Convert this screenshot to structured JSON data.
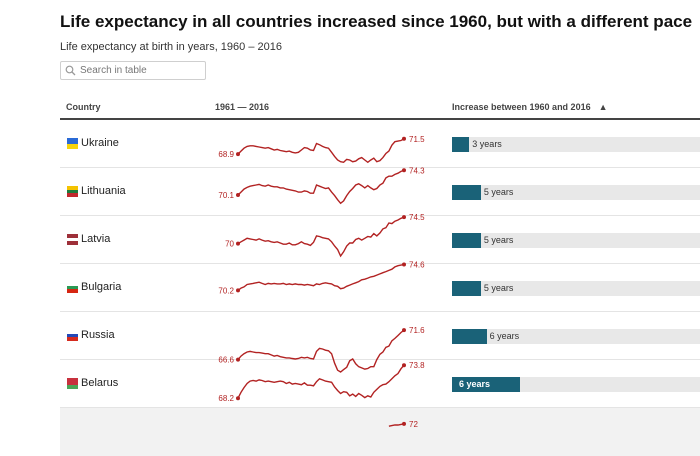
{
  "page": {
    "title": "Life expectancy in all countries increased since 1960, but with a different pace",
    "subtitle": "Life expectancy at birth in years, 1960 – 2016"
  },
  "search": {
    "placeholder": "Search in table",
    "value": ""
  },
  "table": {
    "headers": {
      "country": "Country",
      "trend": "1961 — 2016",
      "increase": "Increase between 1960 and 2016"
    },
    "sort": {
      "column": "increase",
      "direction": "ascending"
    },
    "rows": [
      {
        "country": "Ukraine",
        "flag": [
          "#2a6ad6",
          "#f5d40e"
        ],
        "start_label": "68.9",
        "end_label": "71.5",
        "series": [
          68.9,
          69.4,
          69.9,
          70.2,
          70.3,
          70.3,
          70.2,
          70.1,
          70.0,
          69.9,
          70.0,
          69.8,
          69.6,
          69.7,
          69.5,
          69.4,
          69.3,
          69.4,
          69.2,
          69.1,
          69.2,
          69.6,
          70.0,
          69.9,
          69.6,
          69.5,
          70.7,
          70.5,
          70.2,
          70.0,
          69.9,
          69.2,
          68.5,
          67.9,
          67.6,
          67.5,
          68.0,
          67.9,
          67.6,
          67.7,
          68.1,
          68.3,
          67.9,
          67.5,
          67.9,
          68.2,
          67.6,
          67.8,
          68.3,
          69.0,
          69.4,
          70.4,
          71.0,
          71.1,
          71.2,
          71.5
        ],
        "increase_years": 3,
        "increase_label": "3 years",
        "label_inside": false
      },
      {
        "country": "Lithuania",
        "flag": [
          "#f4c300",
          "#1e7a3c",
          "#c1272d"
        ],
        "start_label": "70.1",
        "end_label": "74.3",
        "series": [
          70.1,
          70.6,
          71.1,
          71.4,
          71.6,
          71.7,
          71.8,
          71.9,
          71.7,
          71.6,
          71.8,
          71.6,
          71.5,
          71.5,
          71.3,
          71.3,
          71.1,
          71.0,
          70.9,
          70.8,
          70.6,
          70.6,
          70.8,
          70.7,
          70.4,
          70.4,
          71.8,
          71.6,
          71.4,
          71.2,
          71.3,
          70.6,
          70.0,
          69.3,
          68.7,
          69.1,
          70.0,
          70.7,
          71.2,
          71.8,
          72.0,
          71.7,
          71.3,
          71.7,
          71.3,
          71.0,
          71.2,
          71.8,
          72.1,
          73.0,
          73.3,
          73.3,
          73.6,
          73.8,
          74.1,
          74.3
        ],
        "increase_years": 5,
        "increase_label": "5 years",
        "label_inside": false
      },
      {
        "country": "Latvia",
        "flag": [
          "#9e3039",
          "#ffffff",
          "#9e3039"
        ],
        "start_label": "70",
        "end_label": "74.5",
        "series": [
          70.0,
          70.3,
          70.6,
          70.9,
          70.8,
          70.7,
          70.6,
          70.8,
          70.6,
          70.4,
          70.5,
          70.3,
          70.2,
          70.3,
          70.1,
          69.9,
          69.9,
          70.1,
          69.8,
          69.8,
          70.0,
          70.3,
          70.0,
          69.9,
          69.7,
          70.2,
          71.3,
          71.2,
          71.0,
          70.9,
          70.8,
          70.3,
          69.6,
          69.0,
          67.9,
          68.6,
          69.6,
          70.1,
          70.1,
          70.7,
          70.9,
          70.6,
          70.9,
          71.2,
          71.1,
          71.7,
          71.3,
          71.8,
          72.5,
          72.7,
          73.5,
          73.4,
          73.8,
          74.0,
          74.3,
          74.5
        ],
        "increase_years": 5,
        "increase_label": "5 years",
        "label_inside": false
      },
      {
        "country": "Bulgaria",
        "flag": [
          "#ffffff",
          "#2a9a54",
          "#d62612"
        ],
        "start_label": "70.2",
        "end_label": "74.6",
        "series": [
          70.2,
          70.6,
          70.8,
          71.2,
          71.3,
          71.4,
          71.5,
          71.6,
          71.4,
          71.2,
          71.4,
          71.3,
          71.4,
          71.3,
          71.3,
          71.4,
          71.2,
          71.3,
          71.2,
          71.3,
          71.2,
          71.2,
          71.1,
          71.2,
          71.1,
          71.0,
          71.3,
          71.2,
          71.4,
          71.5,
          71.4,
          71.3,
          71.0,
          70.9,
          70.5,
          70.6,
          70.9,
          71.1,
          71.3,
          71.5,
          71.7,
          72.0,
          72.1,
          72.3,
          72.5,
          72.6,
          72.8,
          73.0,
          73.2,
          73.4,
          73.6,
          73.8,
          74.2,
          74.4,
          74.5,
          74.6
        ],
        "increase_years": 5,
        "increase_label": "5 years",
        "label_inside": false
      },
      {
        "country": "Russia",
        "flag": [
          "#ffffff",
          "#2348b7",
          "#d52b1e"
        ],
        "start_label": "66.6",
        "end_label": "71.6",
        "series": [
          66.6,
          67.2,
          67.6,
          67.9,
          68.0,
          67.9,
          67.8,
          67.8,
          67.7,
          67.6,
          67.6,
          67.4,
          67.2,
          67.3,
          67.1,
          67.0,
          66.9,
          66.9,
          66.8,
          66.7,
          66.8,
          67.0,
          66.9,
          67.0,
          66.8,
          66.7,
          68.0,
          68.5,
          68.4,
          68.2,
          68.1,
          67.6,
          66.0,
          64.8,
          64.5,
          64.9,
          65.3,
          66.4,
          66.7,
          65.9,
          65.4,
          65.2,
          65.0,
          65.1,
          65.4,
          65.4,
          66.6,
          67.5,
          67.9,
          68.7,
          68.9,
          69.8,
          70.2,
          70.7,
          71.2,
          71.6
        ],
        "increase_years": 6,
        "increase_label": "6 years",
        "label_inside": false
      },
      {
        "country": "Belarus",
        "flag": [
          "#c8313e",
          "#c8313e",
          "#4aa657"
        ],
        "start_label": "68.2",
        "end_label": "73.8",
        "series": [
          68.2,
          69.2,
          70.0,
          70.7,
          71.1,
          71.2,
          71.1,
          71.3,
          71.2,
          71.0,
          71.1,
          71.0,
          70.9,
          71.0,
          71.1,
          71.0,
          70.7,
          70.9,
          70.6,
          70.7,
          70.6,
          70.5,
          70.8,
          70.4,
          70.4,
          70.3,
          71.0,
          71.5,
          71.3,
          71.1,
          71.0,
          70.9,
          70.1,
          69.5,
          69.0,
          69.3,
          69.2,
          68.6,
          68.9,
          68.5,
          69.0,
          68.7,
          68.3,
          68.6,
          68.4,
          69.2,
          69.7,
          70.2,
          70.5,
          70.6,
          71.0,
          71.5,
          72.0,
          72.4,
          73.2,
          73.8
        ],
        "increase_years": 6,
        "increase_label": "6 years",
        "label_inside": true
      },
      {
        "country": "",
        "flag": [],
        "start_label": "",
        "end_label": "72",
        "series": [
          71.6,
          71.7,
          71.8,
          71.8,
          71.9,
          72.0
        ],
        "increase_years": 0,
        "increase_label": "",
        "label_inside": false
      }
    ]
  },
  "scales": {
    "y_min": 64.5,
    "y_max": 75.5,
    "bar_max_years": 43
  },
  "colors": {
    "line": "#b22222",
    "bar": "#1a6278",
    "bar_bg": "#e8e8e8"
  },
  "icons": {
    "search": "search-icon"
  }
}
